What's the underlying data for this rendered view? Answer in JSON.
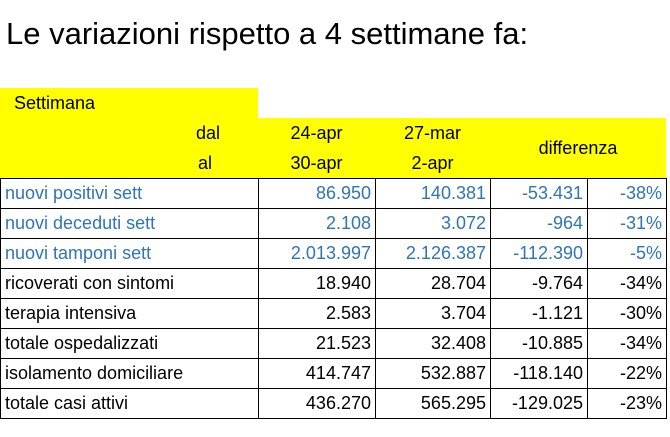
{
  "title": "Le variazioni rispetto a 4 settimane fa:",
  "header": {
    "week": "Settimana",
    "from": "dal",
    "to": "al",
    "columns": [
      {
        "from": "24-apr",
        "to": "30-apr"
      },
      {
        "from": "27-mar",
        "to": "2-apr"
      }
    ],
    "difference": "differenza",
    "color": "#ffff00"
  },
  "table": {
    "rows": [
      {
        "label": "nuovi positivi sett",
        "cells": [
          "86.950",
          "140.381",
          "-53.431",
          "-38%"
        ],
        "color": "#2e75b6"
      },
      {
        "label": "nuovi deceduti sett",
        "cells": [
          "2.108",
          "3.072",
          "-964",
          "-31%"
        ],
        "color": "#2e75b6"
      },
      {
        "label": "nuovi tamponi sett",
        "cells": [
          "2.013.997",
          "2.126.387",
          "-112.390",
          "-5%"
        ],
        "color": "#2e75b6"
      },
      {
        "label": "ricoverati con sintomi",
        "cells": [
          "18.940",
          "28.704",
          "-9.764",
          "-34%"
        ],
        "color": "#000000"
      },
      {
        "label": "terapia intensiva",
        "cells": [
          "2.583",
          "3.704",
          "-1.121",
          "-30%"
        ],
        "color": "#000000"
      },
      {
        "label": "totale ospedalizzati",
        "cells": [
          "21.523",
          "32.408",
          "-10.885",
          "-34%"
        ],
        "color": "#000000"
      },
      {
        "label": "isolamento domiciliare",
        "cells": [
          "414.747",
          "532.887",
          "-118.140",
          "-22%"
        ],
        "color": "#000000"
      },
      {
        "label": "totale casi attivi",
        "cells": [
          "436.270",
          "565.295",
          "-129.025",
          "-23%"
        ],
        "color": "#000000"
      }
    ]
  }
}
